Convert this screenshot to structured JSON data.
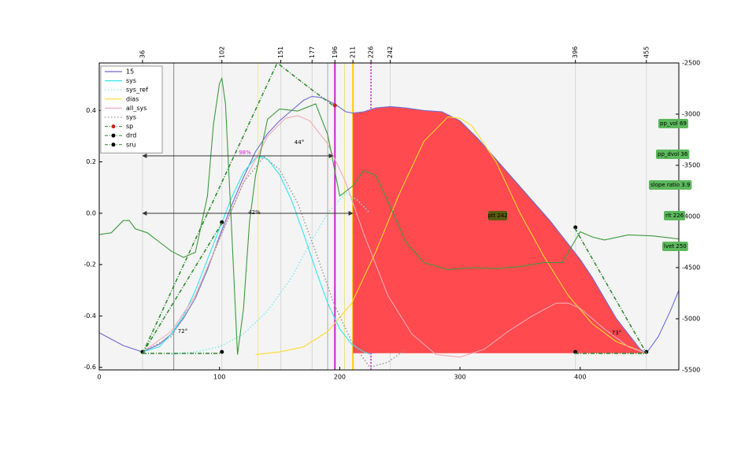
{
  "chart_data": {
    "type": "line",
    "xlim": [
      0,
      482
    ],
    "xticks": [
      0,
      100,
      200,
      300,
      400
    ],
    "x2ticks": [
      36,
      102,
      151,
      177,
      196,
      211,
      226,
      242,
      396,
      455
    ],
    "ylim": [
      -0.61,
      0.585
    ],
    "yticks": [
      0.4,
      0.2,
      {
        "value": 0,
        "label": "0.0"
      },
      -0.2,
      -0.4,
      -0.6
    ],
    "y2lim": [
      -5500,
      -2500
    ],
    "y2ticks": [
      -2500,
      -3000,
      -3500,
      -4000,
      -4500,
      -5000,
      -5500
    ],
    "background": "#f4f4f4",
    "series": [
      {
        "name": "15",
        "color": "#6b6bd6",
        "style": "solid",
        "x": [
          0,
          10,
          20,
          36,
          50,
          60,
          70,
          80,
          90,
          100,
          110,
          120,
          130,
          140,
          150,
          160,
          170,
          177,
          185,
          196,
          205,
          211,
          220,
          230,
          242,
          255,
          270,
          285,
          300,
          315,
          330,
          345,
          360,
          375,
          390,
          400,
          410,
          420,
          430,
          440,
          450,
          455,
          465,
          475,
          482
        ],
        "values": [
          -0.465,
          -0.49,
          -0.515,
          -0.54,
          -0.51,
          -0.47,
          -0.41,
          -0.33,
          -0.22,
          -0.09,
          0.03,
          0.14,
          0.24,
          0.31,
          0.36,
          0.4,
          0.44,
          0.455,
          0.45,
          0.425,
          0.395,
          0.39,
          0.395,
          0.41,
          0.415,
          0.41,
          0.4,
          0.395,
          0.36,
          0.29,
          0.21,
          0.13,
          0.05,
          -0.03,
          -0.12,
          -0.18,
          -0.25,
          -0.33,
          -0.41,
          -0.47,
          -0.53,
          -0.545,
          -0.48,
          -0.38,
          -0.3
        ]
      },
      {
        "name": "sys",
        "color": "#33e6f0",
        "style": "solid",
        "x": [
          36,
          50,
          60,
          70,
          80,
          90,
          100,
          110,
          120,
          130,
          135,
          140,
          150,
          160,
          170,
          180,
          190,
          200,
          210,
          220,
          226
        ],
        "values": [
          -0.54,
          -0.52,
          -0.47,
          -0.4,
          -0.3,
          -0.18,
          -0.06,
          0.06,
          0.16,
          0.215,
          0.22,
          0.21,
          0.15,
          0.05,
          -0.08,
          -0.22,
          -0.35,
          -0.45,
          -0.51,
          -0.54,
          -0.55
        ]
      },
      {
        "name": "sys_ref",
        "color": "#7ee8ee",
        "style": "dotted",
        "x": [
          60,
          80,
          100,
          120,
          140,
          160,
          175,
          190,
          205,
          215,
          225
        ],
        "values": [
          -0.55,
          -0.54,
          -0.52,
          -0.47,
          -0.38,
          -0.25,
          -0.12,
          0.0,
          0.08,
          0.05,
          0.0
        ]
      },
      {
        "name": "dias",
        "color": "#ffd92e",
        "style": "solid",
        "x": [
          130,
          150,
          170,
          190,
          210,
          230,
          250,
          270,
          290,
          300,
          310,
          330,
          350,
          370,
          390,
          410,
          430,
          455
        ],
        "values": [
          -0.55,
          -0.54,
          -0.52,
          -0.46,
          -0.35,
          -0.15,
          0.08,
          0.28,
          0.375,
          0.37,
          0.34,
          0.2,
          0.0,
          -0.17,
          -0.32,
          -0.43,
          -0.5,
          -0.545
        ]
      },
      {
        "name": "all_sys",
        "color": "#f2aab4",
        "style": "solid",
        "x": [
          36,
          60,
          80,
          100,
          120,
          140,
          155,
          165,
          175,
          190,
          205,
          220,
          240,
          260,
          280,
          300,
          320,
          340,
          360,
          380,
          390,
          400,
          420,
          440,
          455
        ],
        "values": [
          -0.54,
          -0.46,
          -0.32,
          -0.1,
          0.12,
          0.3,
          0.37,
          0.38,
          0.36,
          0.27,
          0.12,
          -0.08,
          -0.32,
          -0.47,
          -0.55,
          -0.56,
          -0.53,
          -0.46,
          -0.4,
          -0.35,
          -0.35,
          -0.37,
          -0.45,
          -0.52,
          -0.545
        ]
      },
      {
        "name": "sys",
        "color": "#999999",
        "style": "dotted",
        "x": [
          36,
          60,
          80,
          100,
          120,
          137,
          150,
          165,
          180,
          195,
          210,
          225,
          240,
          255
        ],
        "values": [
          -0.54,
          -0.48,
          -0.33,
          -0.1,
          0.12,
          0.22,
          0.17,
          0.04,
          -0.15,
          -0.35,
          -0.5,
          -0.6,
          -0.58,
          -0.53
        ]
      },
      {
        "name": "sp",
        "color": "#cc2222",
        "style": "markers",
        "x": [
          196
        ],
        "values": [
          0.42
        ]
      },
      {
        "name": "drd",
        "color": "#000000",
        "style": "markers",
        "x": [
          102,
          396
        ],
        "values": [
          -0.035,
          -0.055
        ]
      },
      {
        "name": "sru",
        "color": "#000000",
        "style": "markers",
        "x": [
          36,
          102,
          396,
          455
        ],
        "values": [
          -0.54,
          -0.54,
          -0.54,
          -0.54
        ]
      },
      {
        "color": "#3d9a3d",
        "style": "solid",
        "axis": "y2",
        "x": [
          0,
          10,
          20,
          25,
          30,
          40,
          50,
          60,
          70,
          80,
          90,
          95,
          100,
          102,
          105,
          110,
          115,
          120,
          125,
          130,
          140,
          150,
          165,
          180,
          190,
          200,
          211,
          220,
          230,
          240,
          255,
          270,
          290,
          310,
          330,
          350,
          370,
          385,
          395,
          400,
          410,
          420,
          440,
          460,
          482
        ],
        "values": [
          -4177,
          -4160,
          -4040,
          -4040,
          -4120,
          -4160,
          -4250,
          -4340,
          -4400,
          -4350,
          -3800,
          -3100,
          -2700,
          -2650,
          -2900,
          -4100,
          -5350,
          -4900,
          -4050,
          -3600,
          -3050,
          -2950,
          -2970,
          -2900,
          -3200,
          -3800,
          -3700,
          -3550,
          -3600,
          -3850,
          -4250,
          -4450,
          -4520,
          -4500,
          -4510,
          -4490,
          -4450,
          -4450,
          -4250,
          -4150,
          -4200,
          -4230,
          -4180,
          -4190,
          -4220
        ]
      }
    ],
    "fill": {
      "series": 0,
      "from": 211,
      "to": 455,
      "base": -0.545,
      "color": "#ff4a4f"
    },
    "vlines": [
      {
        "x": 62,
        "color": "#888888",
        "width": 1
      },
      {
        "x": 132,
        "color": "#eeee88",
        "width": 1
      },
      {
        "x": 190,
        "color": "#aaaaaa",
        "width": 1
      },
      {
        "x": 196,
        "color": "#cc22cc",
        "width": 2
      },
      {
        "x": 204,
        "color": "#eee08a",
        "width": 1
      },
      {
        "x": 211,
        "color": "#ffcc00",
        "width": 2
      },
      {
        "x": 226,
        "color": "#cc22cc",
        "width": 1.5,
        "dash": true
      }
    ],
    "annotations": [
      "44°",
      "42%",
      "98%",
      "72°",
      "73°"
    ],
    "boxes": [
      "pp_vol 69",
      "pp_dvol 36",
      "slope ratio 3.9",
      "rlt 226",
      "lvet 250"
    ],
    "ptt_box": "ptt 242"
  }
}
